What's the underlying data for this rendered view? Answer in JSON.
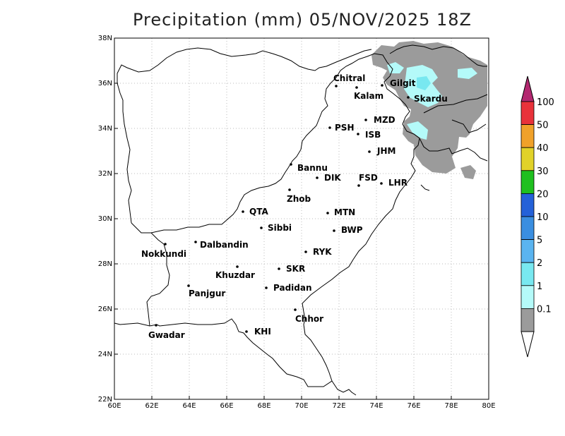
{
  "title": "Precipitation (mm) 05/NOV/2025 18Z",
  "x_ticks": [
    "60E",
    "62E",
    "64E",
    "66E",
    "68E",
    "70E",
    "72E",
    "74E",
    "76E",
    "78E",
    "80E"
  ],
  "y_ticks": [
    "22N",
    "24N",
    "26N",
    "28N",
    "30N",
    "32N",
    "34N",
    "36N",
    "38N"
  ],
  "cities": [
    {
      "name": "Chitral"
    },
    {
      "name": "Gilgit"
    },
    {
      "name": "Kalam"
    },
    {
      "name": "Skardu"
    },
    {
      "name": "MZD"
    },
    {
      "name": "PSH"
    },
    {
      "name": "ISB"
    },
    {
      "name": "JHM"
    },
    {
      "name": "Bannu"
    },
    {
      "name": "DIK"
    },
    {
      "name": "FSD"
    },
    {
      "name": "LHR"
    },
    {
      "name": "Zhob"
    },
    {
      "name": "QTA"
    },
    {
      "name": "MTN"
    },
    {
      "name": "Sibbi"
    },
    {
      "name": "BWP"
    },
    {
      "name": "Dalbandin"
    },
    {
      "name": "Nokkundi"
    },
    {
      "name": "RYK"
    },
    {
      "name": "Khuzdar"
    },
    {
      "name": "SKR"
    },
    {
      "name": "Padidan"
    },
    {
      "name": "Panjgur"
    },
    {
      "name": "Chhor"
    },
    {
      "name": "KHI"
    },
    {
      "name": "Gwadar"
    }
  ],
  "colorbar": {
    "labels": [
      "0.1",
      "1",
      "2",
      "5",
      "10",
      "20",
      "30",
      "40",
      "50",
      "100"
    ],
    "colors": [
      "#9b9b9b",
      "#b4faf9",
      "#78e8f0",
      "#5ab4f0",
      "#3a8ee0",
      "#2461d8",
      "#1fc01f",
      "#e1d229",
      "#f0a12a",
      "#e8323a",
      "#b32870"
    ]
  }
}
